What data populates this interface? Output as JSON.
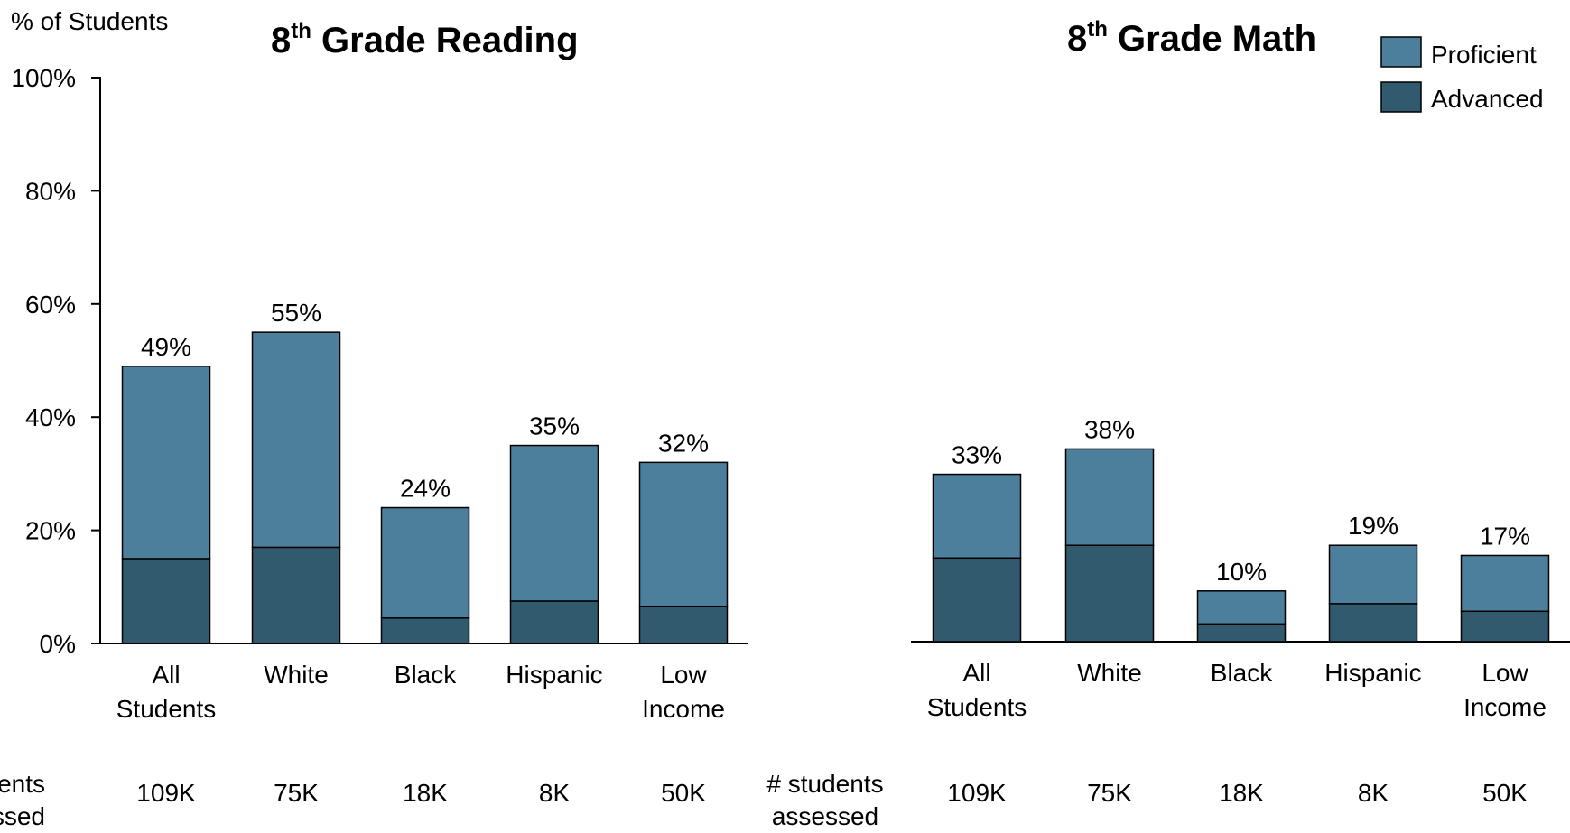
{
  "chart_data": [
    {
      "type": "bar",
      "stacked": true,
      "title": {
        "main": "8",
        "sup": "th",
        "rest": " Grade Reading"
      },
      "ylabel": "% of Students",
      "ylim": [
        0,
        100
      ],
      "yticks": [
        "0%",
        "20%",
        "40%",
        "60%",
        "80%",
        "100%"
      ],
      "categories": [
        [
          "All",
          "Students"
        ],
        [
          "White"
        ],
        [
          "Black"
        ],
        [
          "Hispanic"
        ],
        [
          "Low",
          "Income"
        ]
      ],
      "series": [
        {
          "name": "Advanced",
          "values": [
            15,
            17,
            4.5,
            7.5,
            6.5
          ],
          "color": "#325a6e"
        },
        {
          "name": "Proficient",
          "values": [
            34,
            38,
            19.5,
            27.5,
            25.5
          ],
          "color": "#4b7f9b"
        }
      ],
      "totals": [
        "49%",
        "55%",
        "24%",
        "35%",
        "32%"
      ],
      "total_values": [
        49,
        55,
        24,
        35,
        32
      ],
      "count_label": [
        "# students",
        "assessed"
      ],
      "counts": [
        "109K",
        "75K",
        "18K",
        "8K",
        "50K"
      ]
    },
    {
      "type": "bar",
      "stacked": true,
      "title": {
        "main": "8",
        "sup": "th",
        "rest": " Grade Math"
      },
      "ylim": [
        0,
        100
      ],
      "categories": [
        [
          "All",
          "Students"
        ],
        [
          "White"
        ],
        [
          "Black"
        ],
        [
          "Hispanic"
        ],
        [
          "Low",
          "Income"
        ]
      ],
      "series": [
        {
          "name": "Advanced",
          "values": [
            16.5,
            19,
            3.5,
            7.5,
            6
          ],
          "color": "#325a6e"
        },
        {
          "name": "Proficient",
          "values": [
            16.5,
            19,
            6.5,
            11.5,
            11
          ],
          "color": "#4b7f9b"
        }
      ],
      "totals": [
        "33%",
        "38%",
        "10%",
        "19%",
        "17%"
      ],
      "total_values": [
        33,
        38,
        10,
        19,
        17
      ],
      "count_label": [
        "# students",
        "assessed"
      ],
      "counts": [
        "109K",
        "75K",
        "18K",
        "8K",
        "50K"
      ]
    }
  ],
  "legend": [
    {
      "label": "Proficient",
      "color": "#4b7f9b"
    },
    {
      "label": "Advanced",
      "color": "#325a6e"
    }
  ]
}
